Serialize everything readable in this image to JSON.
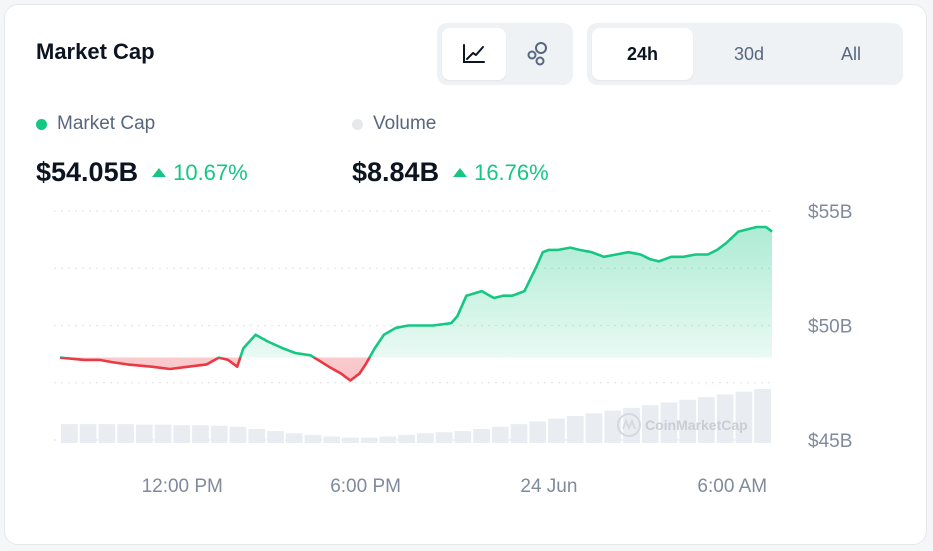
{
  "header": {
    "title": "Market Cap",
    "chart_type_icons": [
      "line-chart-icon",
      "bubble-chart-icon"
    ],
    "range_tabs": [
      {
        "label": "24h",
        "active": true
      },
      {
        "label": "30d",
        "active": false
      },
      {
        "label": "All",
        "active": false
      }
    ]
  },
  "legend": {
    "market_cap": {
      "label": "Market Cap",
      "color": "#16c784",
      "value": "$54.05B",
      "change": "10.67%"
    },
    "volume": {
      "label": "Volume",
      "color": "#e6e8ec",
      "value": "$8.84B",
      "change": "16.76%"
    }
  },
  "watermark": "CoinMarketCap",
  "colors": {
    "up": "#16c784",
    "down": "#ea3943",
    "volume": "#e9ecf0"
  },
  "chart_data": {
    "type": "line",
    "baseline": 48.6,
    "ylim": [
      45,
      55
    ],
    "y_ticks": [
      "$55B",
      "$50B",
      "$45B"
    ],
    "y_tick_values": [
      55,
      50,
      45
    ],
    "x_ticks": [
      "12:00 PM",
      "6:00 PM",
      "24 Jun",
      "6:00 AM"
    ],
    "x_tick_positions": [
      4,
      10,
      16,
      22
    ],
    "xlim": [
      0,
      23.3
    ],
    "x": [
      0,
      0.8,
      1.3,
      1.7,
      2.2,
      3,
      3.6,
      4.2,
      4.8,
      5.2,
      5.5,
      5.8,
      6,
      6.4,
      6.8,
      7.3,
      7.7,
      8.2,
      8.8,
      9.2,
      9.5,
      9.8,
      10,
      10.3,
      10.6,
      11,
      11.4,
      11.8,
      12.2,
      12.8,
      13,
      13.3,
      13.8,
      14.2,
      14.5,
      14.8,
      15.2,
      15.6,
      15.8,
      16,
      16.3,
      16.7,
      17,
      17.4,
      17.8,
      18.2,
      18.6,
      19,
      19.3,
      19.6,
      20,
      20.4,
      20.8,
      21.2,
      21.5,
      21.8,
      22.2,
      22.5,
      22.8,
      23.1,
      23.3
    ],
    "market_cap": [
      48.6,
      48.5,
      48.5,
      48.4,
      48.3,
      48.2,
      48.1,
      48.2,
      48.3,
      48.6,
      48.5,
      48.2,
      49.0,
      49.6,
      49.3,
      49.0,
      48.8,
      48.7,
      48.2,
      47.9,
      47.6,
      47.9,
      48.3,
      49.0,
      49.6,
      49.9,
      50.0,
      50.0,
      50.0,
      50.1,
      50.4,
      51.3,
      51.5,
      51.2,
      51.3,
      51.3,
      51.5,
      52.6,
      53.2,
      53.3,
      53.3,
      53.4,
      53.3,
      53.2,
      53.0,
      53.1,
      53.2,
      53.1,
      52.9,
      52.8,
      53.0,
      53.0,
      53.1,
      53.1,
      53.3,
      53.6,
      54.1,
      54.2,
      54.3,
      54.3,
      54.1
    ],
    "volume_bars": [
      0.35,
      0.35,
      0.35,
      0.35,
      0.34,
      0.34,
      0.33,
      0.33,
      0.32,
      0.3,
      0.26,
      0.22,
      0.18,
      0.15,
      0.12,
      0.1,
      0.1,
      0.12,
      0.15,
      0.18,
      0.2,
      0.22,
      0.26,
      0.3,
      0.35,
      0.4,
      0.45,
      0.5,
      0.55,
      0.6,
      0.65,
      0.7,
      0.75,
      0.8,
      0.85,
      0.9,
      0.95,
      1.0
    ],
    "series": [
      {
        "name": "Market Cap"
      },
      {
        "name": "Volume"
      }
    ]
  }
}
